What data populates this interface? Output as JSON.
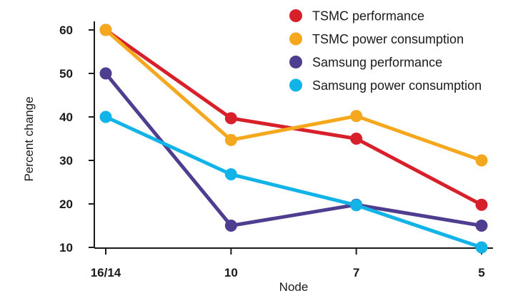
{
  "chart_data": {
    "type": "line",
    "title": "",
    "xlabel": "Node",
    "ylabel": "Percent change",
    "categories": [
      "16/14",
      "10",
      "7",
      "5"
    ],
    "ylim": [
      10,
      60
    ],
    "yticks": [
      10,
      20,
      30,
      40,
      50,
      60
    ],
    "grid": false,
    "legend": "top-right",
    "series": [
      {
        "name": "TSMC performance",
        "color": "#d7202a",
        "values": [
          60,
          39.7,
          35,
          19.8
        ]
      },
      {
        "name": "TSMC power consumption",
        "color": "#f5a81d",
        "values": [
          60,
          34.7,
          40.2,
          30
        ]
      },
      {
        "name": "Samsung performance",
        "color": "#4f3d8f",
        "values": [
          50,
          15,
          19.8,
          15
        ]
      },
      {
        "name": "Samsung power consumption",
        "color": "#12b4e8",
        "values": [
          40,
          26.8,
          19.7,
          10
        ]
      }
    ]
  }
}
